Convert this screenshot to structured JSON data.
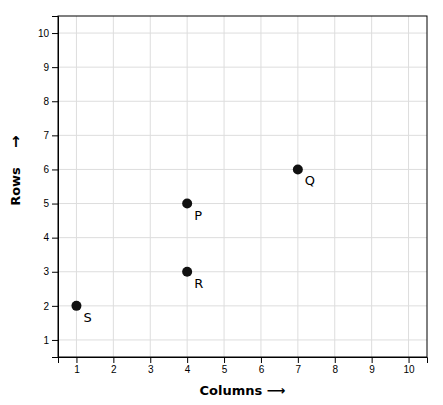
{
  "chart_data": {
    "type": "scatter",
    "xlabel": "Columns ⟶",
    "ylabel": "Rows",
    "annotations": [
      {
        "text": "↑"
      }
    ],
    "labels": [
      "P",
      "Q",
      "R",
      "S"
    ],
    "x": [
      4,
      7,
      4,
      1
    ],
    "values": [
      5,
      6,
      3,
      2
    ],
    "color": "#111111",
    "xlim": [
      0.5,
      10.5
    ],
    "ylim": [
      0.5,
      10.5
    ],
    "xticks": [
      1,
      2,
      3,
      4,
      5,
      6,
      7,
      8,
      9,
      10
    ],
    "yticks": [
      1,
      2,
      3,
      4,
      5,
      6,
      7,
      8,
      9,
      10
    ],
    "grid": true
  }
}
